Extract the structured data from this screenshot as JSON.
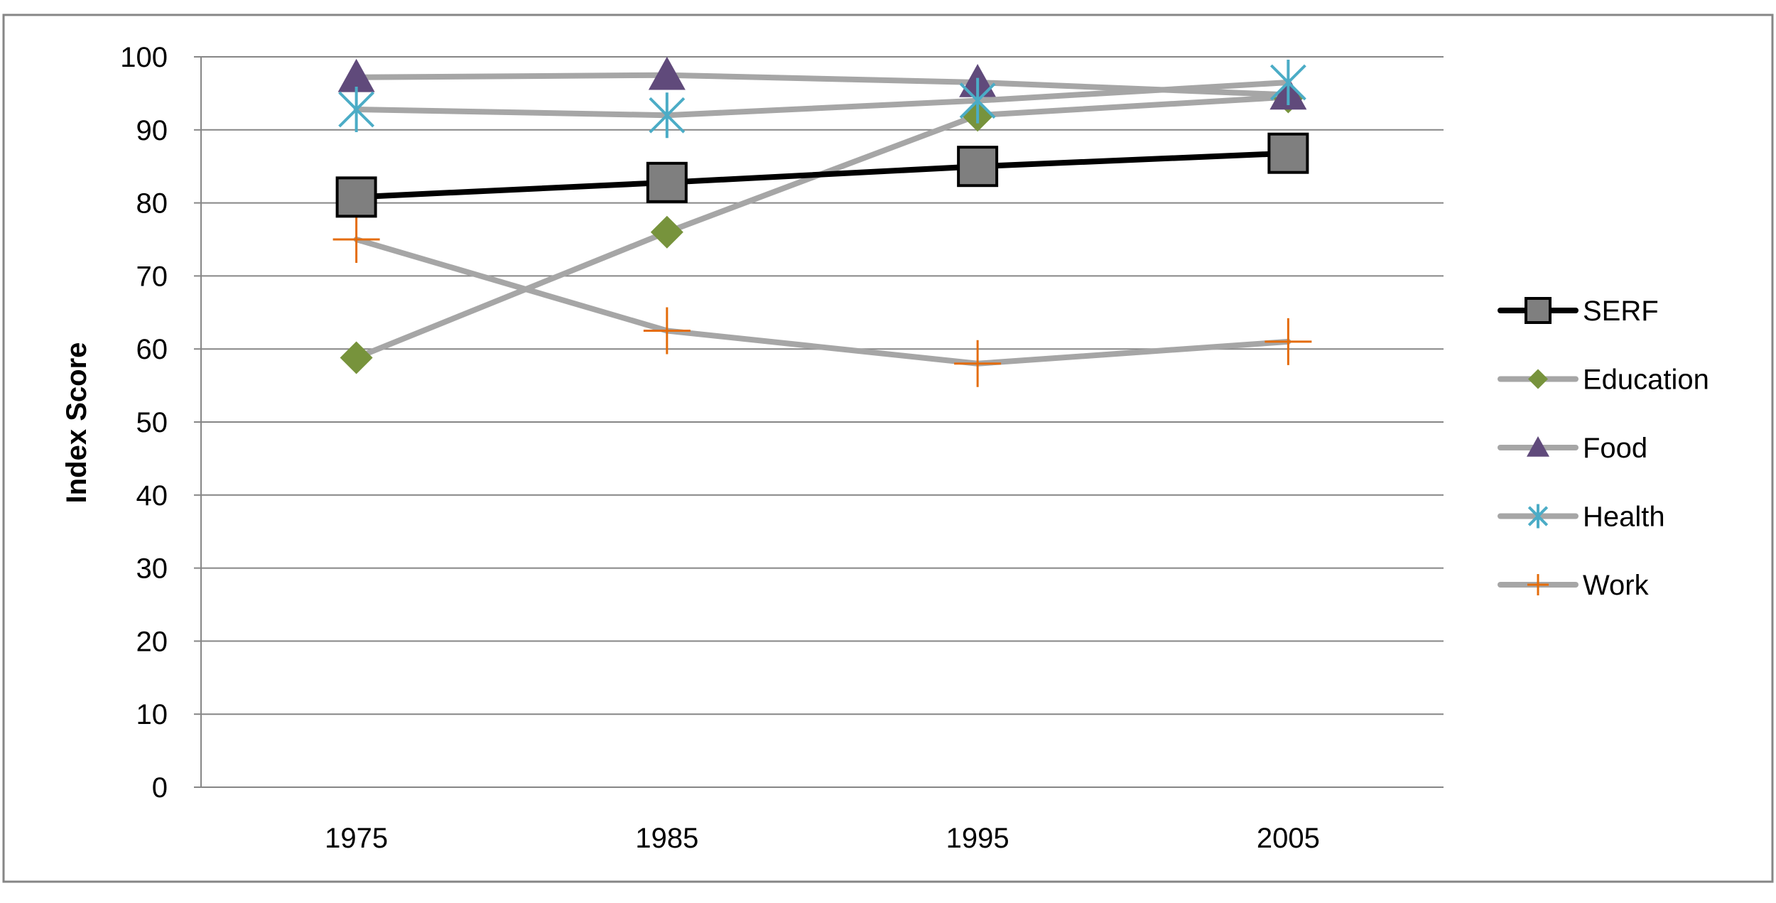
{
  "chart_data": {
    "type": "line",
    "title": "",
    "xlabel": "",
    "ylabel": "Index Score",
    "categories": [
      "1975",
      "1985",
      "1995",
      "2005"
    ],
    "ylim": [
      0,
      100
    ],
    "yticks": [
      0,
      10,
      20,
      30,
      40,
      50,
      60,
      70,
      80,
      90,
      100
    ],
    "grid": true,
    "legend_position": "right",
    "series": [
      {
        "name": "SERF",
        "values": [
          80.8,
          82.8,
          85.0,
          86.8
        ],
        "line_color": "#000000",
        "marker": "square",
        "marker_color": "#7f7f7f"
      },
      {
        "name": "Education",
        "values": [
          58.8,
          76.0,
          92.0,
          94.5
        ],
        "line_color": "#a6a6a6",
        "marker": "diamond",
        "marker_color": "#77933c"
      },
      {
        "name": "Food",
        "values": [
          97.2,
          97.5,
          96.5,
          94.8
        ],
        "line_color": "#a6a6a6",
        "marker": "triangle",
        "marker_color": "#604a7b"
      },
      {
        "name": "Health",
        "values": [
          92.8,
          92.0,
          94.0,
          96.5
        ],
        "line_color": "#a6a6a6",
        "marker": "asterisk",
        "marker_color": "#4bacc6"
      },
      {
        "name": "Work",
        "values": [
          75.0,
          62.5,
          58.0,
          61.0
        ],
        "line_color": "#a6a6a6",
        "marker": "plus",
        "marker_color": "#e46c0a"
      }
    ]
  }
}
